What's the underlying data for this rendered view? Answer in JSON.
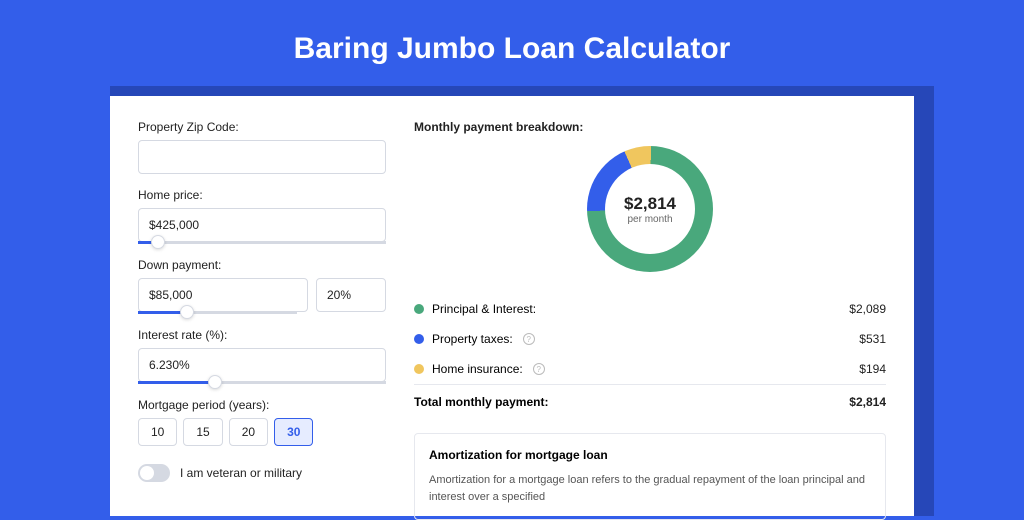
{
  "page": {
    "title": "Baring Jumbo Loan Calculator",
    "background_color": "#335eea",
    "card_shadow_color": "#2647b8"
  },
  "form": {
    "zip": {
      "label": "Property Zip Code:",
      "value": ""
    },
    "home_price": {
      "label": "Home price:",
      "value": "$425,000",
      "slider_fill_pct": 8
    },
    "down_payment": {
      "label": "Down payment:",
      "value": "$85,000",
      "pct_value": "20%",
      "slider_fill_pct": 20
    },
    "interest_rate": {
      "label": "Interest rate (%):",
      "value": "6.230%",
      "slider_fill_pct": 31
    },
    "period": {
      "label": "Mortgage period (years):",
      "options": [
        "10",
        "15",
        "20",
        "30"
      ],
      "active": "30"
    },
    "veteran": {
      "label": "I am veteran or military",
      "checked": false
    }
  },
  "breakdown": {
    "title": "Monthly payment breakdown:",
    "donut": {
      "center_value": "$2,814",
      "center_sub": "per month",
      "slices": [
        {
          "label": "Principal & Interest:",
          "value": "$2,089",
          "color": "#49a87c",
          "pct": 74.2
        },
        {
          "label": "Property taxes:",
          "value": "$531",
          "color": "#335eea",
          "pct": 18.9,
          "info": true
        },
        {
          "label": "Home insurance:",
          "value": "$194",
          "color": "#f0c65e",
          "pct": 6.9,
          "info": true
        }
      ]
    },
    "total": {
      "label": "Total monthly payment:",
      "value": "$2,814"
    }
  },
  "amortization": {
    "title": "Amortization for mortgage loan",
    "text": "Amortization for a mortgage loan refers to the gradual repayment of the loan principal and interest over a specified"
  },
  "colors": {
    "border": "#d5d9e2",
    "text": "#222222",
    "muted": "#666666"
  }
}
